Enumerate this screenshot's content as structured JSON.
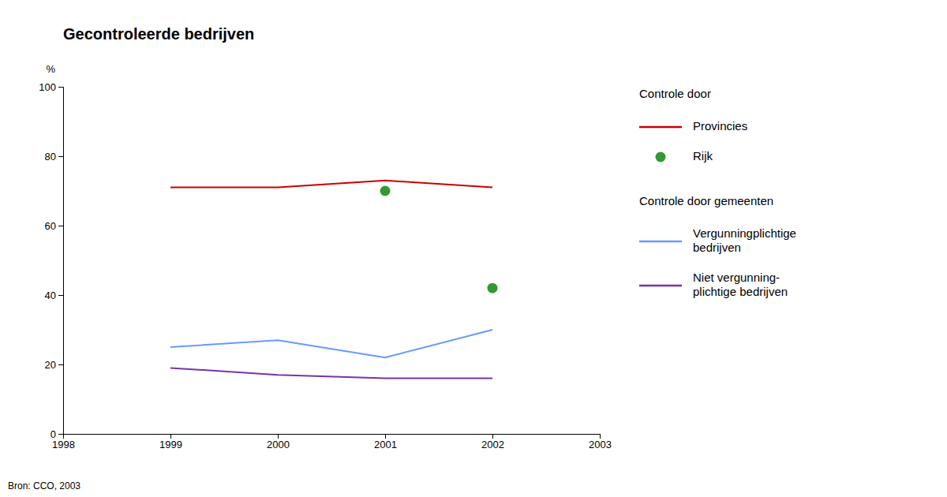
{
  "chart_data": {
    "type": "line",
    "title": "Gecontroleerde bedrijven",
    "ylabel": "%",
    "xlim": [
      1998,
      2003
    ],
    "ylim": [
      0,
      100
    ],
    "xticks": [
      1998,
      1999,
      2000,
      2001,
      2002,
      2003
    ],
    "yticks": [
      0,
      20,
      40,
      60,
      80,
      100
    ],
    "grid": false,
    "annotations": [
      "Controle door",
      "Controle door gemeenten",
      "Bron: CCO, 2003"
    ],
    "series": [
      {
        "name": "Provincies",
        "type": "line",
        "color": "#cc0000",
        "x": [
          1999,
          2000,
          2001,
          2002
        ],
        "values": [
          71,
          71,
          73,
          71
        ]
      },
      {
        "name": "Rijk",
        "type": "scatter",
        "color": "#339933",
        "x": [
          2001,
          2002
        ],
        "values": [
          70,
          42
        ]
      },
      {
        "name": "Vergunningplichtige\nbedrijven",
        "type": "line",
        "color": "#6699ff",
        "x": [
          1999,
          2000,
          2001,
          2002
        ],
        "values": [
          25,
          27,
          22,
          30
        ]
      },
      {
        "name": "Niet vergunning-\nplichtige bedrijven",
        "type": "line",
        "color": "#7733aa",
        "x": [
          1999,
          2000,
          2001,
          2002
        ],
        "values": [
          19,
          17,
          16,
          16
        ]
      }
    ]
  }
}
